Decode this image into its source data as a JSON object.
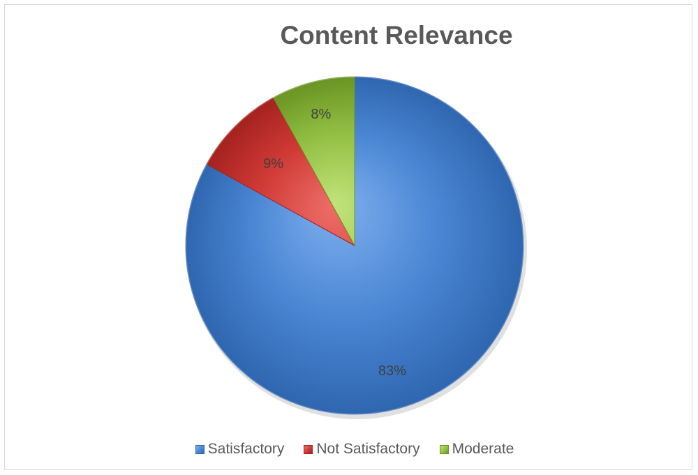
{
  "chart_data": {
    "type": "pie",
    "title": "Content Relevance",
    "categories": [
      "Satisfactory",
      "Not Satisfactory",
      "Moderate"
    ],
    "values": [
      83,
      9,
      8
    ],
    "labels": [
      "83%",
      "9%",
      "8%"
    ],
    "colors": [
      "#4A86D4",
      "#D03A35",
      "#92C043"
    ],
    "colors_light": [
      "#7FB0EE",
      "#EE6E68",
      "#C2E27A"
    ],
    "colors_dark": [
      "#2F66B0",
      "#A4221F",
      "#6A9424"
    ],
    "legend_position": "bottom",
    "start_angle_deg": 0,
    "direction": "clockwise"
  }
}
